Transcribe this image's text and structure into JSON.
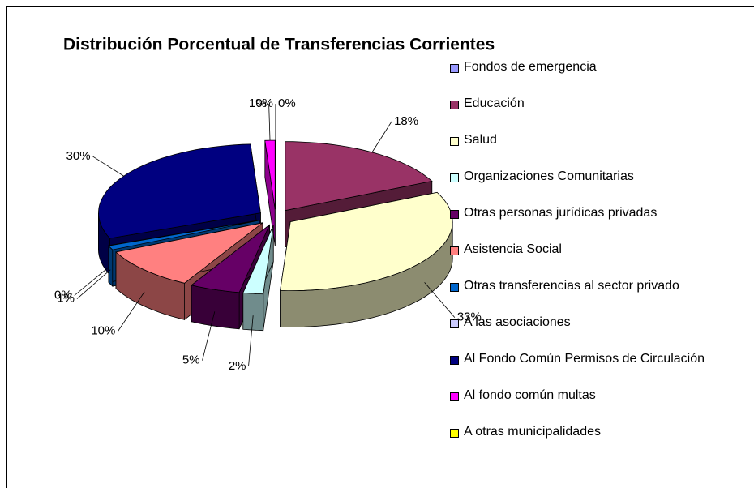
{
  "chart_data": {
    "type": "pie",
    "title": "Distribución Porcentual de Transferencias Corrientes",
    "categories": [
      "Fondos de emergencia",
      "Educación",
      "Salud",
      "Organizaciones Comunitarias",
      "Otras personas jurídicas privadas",
      "Asistencia Social",
      "Otras transferencias al sector privado",
      "A las asociaciones",
      "Al Fondo Común Permisos de Circulación",
      "Al fondo común multas",
      "A otras municipalidades"
    ],
    "values": [
      0,
      18,
      33,
      2,
      5,
      10,
      1,
      0,
      30,
      1,
      0
    ],
    "value_labels": [
      "0%",
      "18%",
      "33%",
      "2%",
      "5%",
      "10%",
      "1%",
      "0%",
      "30%",
      "1%",
      "0%"
    ],
    "colors": [
      "#9999ff",
      "#993366",
      "#ffffcc",
      "#ccffff",
      "#660066",
      "#ff8080",
      "#0066cc",
      "#ccccff",
      "#000080",
      "#ff00ff",
      "#ffff00"
    ],
    "legend": "right"
  }
}
